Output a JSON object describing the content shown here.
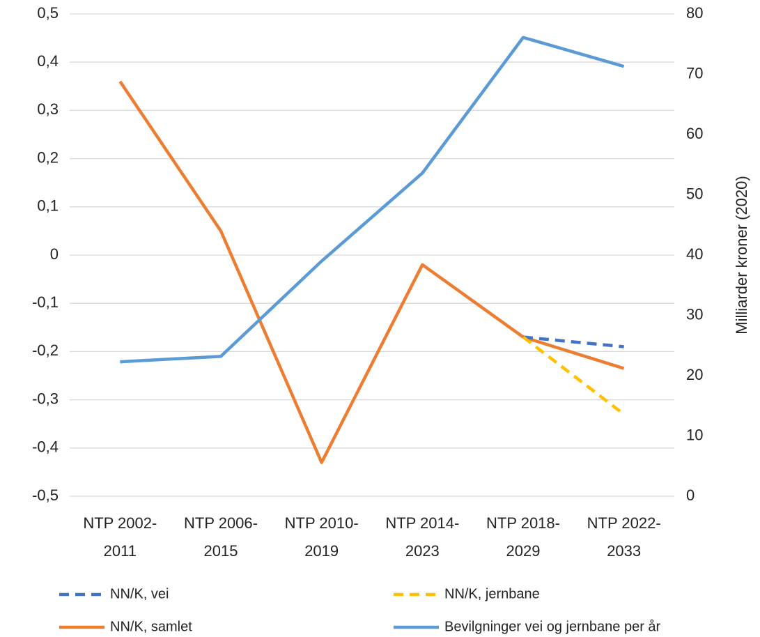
{
  "chart_data": {
    "type": "line",
    "categories": [
      "NTP 2002-2011",
      "NTP 2006-2015",
      "NTP 2010-2019",
      "NTP 2014-2023",
      "NTP 2018-2029",
      "NTP 2022-2033"
    ],
    "series": [
      {
        "name": "NN/K, vei",
        "color": "#4472c4",
        "dashed": true,
        "values": [
          null,
          null,
          null,
          null,
          -0.17,
          -0.19
        ]
      },
      {
        "name": "NN/K, jernbane",
        "color": "#ffc000",
        "dashed": true,
        "values": [
          null,
          null,
          null,
          null,
          -0.17,
          -0.33
        ]
      },
      {
        "name": "NN/K, samlet",
        "color": "#ed7d31",
        "dashed": false,
        "values": [
          0.36,
          0.05,
          -0.43,
          -0.02,
          -0.17,
          -0.235
        ]
      },
      {
        "name": "Bevilgninger vei og jernbane per år",
        "color": "#5b9bd5",
        "dashed": false,
        "axis": "y2",
        "values": [
          22.3,
          23.2,
          39.0,
          53.6,
          76.1,
          71.3
        ]
      }
    ],
    "ylim": [
      -0.5,
      0.5
    ],
    "yticks": [
      {
        "value": -0.5,
        "label": "-0,5"
      },
      {
        "value": -0.4,
        "label": "-0,4"
      },
      {
        "value": -0.3,
        "label": "-0,3"
      },
      {
        "value": -0.2,
        "label": "-0,2"
      },
      {
        "value": -0.1,
        "label": "-0,1"
      },
      0,
      {
        "value": 0.1,
        "label": "0,1"
      },
      {
        "value": 0.2,
        "label": "0,2"
      },
      {
        "value": 0.3,
        "label": "0,3"
      },
      {
        "value": 0.4,
        "label": "0,4"
      },
      {
        "value": 0.5,
        "label": "0,5"
      }
    ],
    "y2lim": [
      0,
      80
    ],
    "y2ticks": [
      0,
      10,
      20,
      30,
      40,
      50,
      60,
      70,
      80
    ],
    "y2label": "Milliarder kroner (2020)",
    "grid": true,
    "legend": "bottom"
  }
}
